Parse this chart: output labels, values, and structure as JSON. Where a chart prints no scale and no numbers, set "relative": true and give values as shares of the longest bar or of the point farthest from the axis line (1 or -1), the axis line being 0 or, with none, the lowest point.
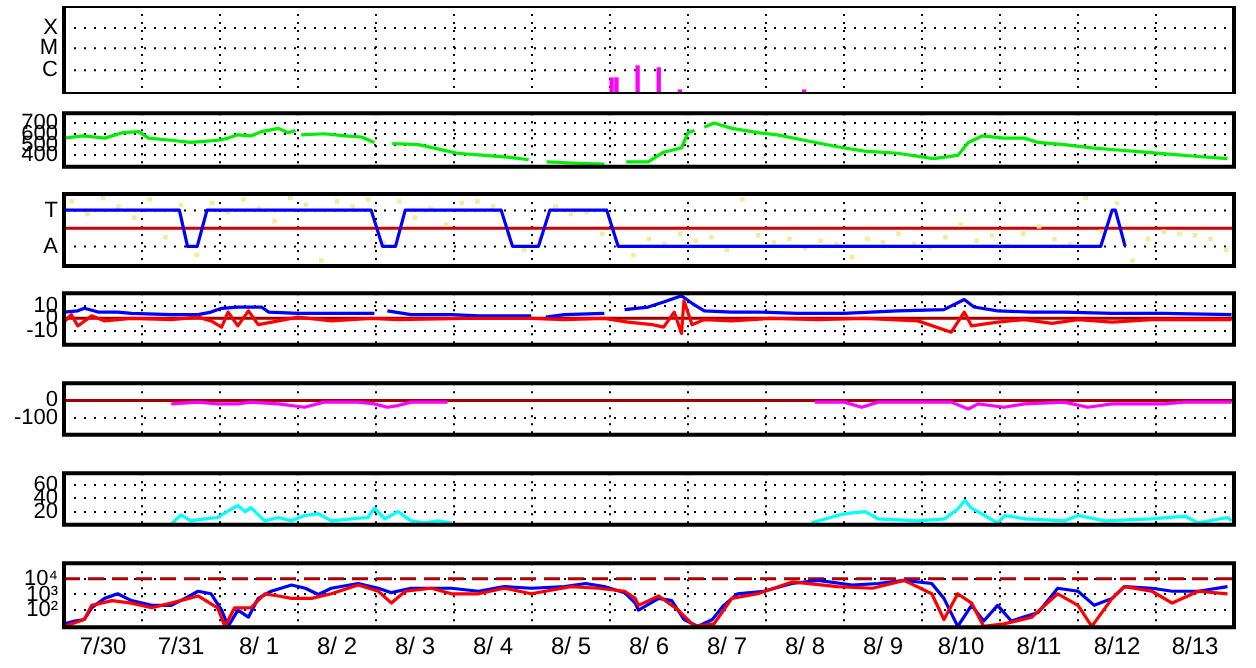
{
  "chart_data": [
    {
      "type": "bar",
      "relative": true,
      "x": [
        "--08-06T00:30",
        "--08-06T02:00",
        "--08-06T08:30",
        "--08-06T15:00",
        "--08-06T21:30",
        "--08-08T11:45"
      ],
      "values": [
        0.57,
        0.57,
        1,
        0.93,
        0.14,
        0.14
      ],
      "color": "#ff00ff",
      "annotations": [
        "C",
        "M",
        "X"
      ],
      "xlim": [
        "--07-30",
        "--08-14"
      ],
      "xticks": [
        {
          "value": "--07-30",
          "label": null
        },
        {
          "value": "--07-31",
          "label": null
        },
        {
          "value": "--08-01",
          "label": null
        },
        {
          "value": "--08-02",
          "label": null
        },
        {
          "value": "--08-03",
          "label": null
        },
        {
          "value": "--08-04",
          "label": null
        },
        {
          "value": "--08-05",
          "label": null
        },
        {
          "value": "--08-06",
          "label": null
        },
        {
          "value": "--08-07",
          "label": null
        },
        {
          "value": "--08-08",
          "label": null
        },
        {
          "value": "--08-09",
          "label": null
        },
        {
          "value": "--08-10",
          "label": null
        },
        {
          "value": "--08-11",
          "label": null
        },
        {
          "value": "--08-12",
          "label": null
        },
        {
          "value": "--08-13",
          "label": null
        },
        {
          "value": "--08-14",
          "label": null
        }
      ],
      "grid": true,
      "tick_labels": "y"
    },
    {
      "type": "line",
      "color": "#00ee00",
      "x": [
        "--07-30T00:00",
        "--07-30T06:00",
        "--07-30T12:30",
        "--07-30T18:00",
        "--07-30T23:00",
        "--07-31T02:00",
        "--07-31T09:00",
        "--07-31T15:00",
        "--07-31T19:00",
        "--07-31T23:30",
        "--08-01T02:30",
        "--08-01T05:30",
        "--08-01T09:30",
        "--08-01T12:45",
        "--08-01T18:00",
        "--08-01T21:00",
        "--08-01T23:15",
        "--08-02T00:00",
        "--08-02T01:00",
        "--08-02T08:00",
        "--08-02T14:30",
        "--08-02T19:30",
        "--08-02T23:30",
        "--08-03T02:30",
        "--08-03T05:00",
        "--08-03T13:00",
        "--08-03T19:00",
        "--08-04T01:00",
        "--08-04T09:30",
        "--08-04T18:00",
        "--08-04T23:00",
        "--08-05T00:00",
        "--08-05T04:30",
        "--08-05T12:00",
        "--08-05T22:15",
        "--08-05T23:00",
        "--08-06T05:00",
        "--08-06T11:45",
        "--08-06T16:30",
        "--08-06T22:00",
        "--08-07T00:00",
        "--08-07T02:00",
        "--08-07T03:00",
        "--08-07T05:00",
        "--08-07T08:00",
        "--08-07T13:30",
        "--08-07T21:30",
        "--08-08T03:30",
        "--08-08T11:45",
        "--08-08T22:00",
        "--08-09T06:15",
        "--08-09T16:30",
        "--08-10T03:30",
        "--08-10T11:00",
        "--08-10T14:15",
        "--08-10T18:30",
        "--08-11T01:15",
        "--08-11T07:30",
        "--08-11T11:45",
        "--08-11T19:45",
        "--08-12T04:15",
        "--08-12T12:15",
        "--08-12T20:30",
        "--08-13T05:00",
        "--08-13T13:00",
        "--08-13T22:00"
      ],
      "values": [
        560,
        580,
        560,
        610,
        620,
        560,
        540,
        520,
        530,
        540,
        560,
        590,
        580,
        620,
        650,
        610,
        630,
        null,
        590,
        600,
        580,
        570,
        520,
        null,
        510,
        500,
        460,
        420,
        400,
        380,
        360,
        null,
        340,
        330,
        320,
        null,
        340,
        340,
        430,
        470,
        610,
        630,
        null,
        660,
        700,
        650,
        610,
        590,
        540,
        480,
        440,
        420,
        370,
        400,
        520,
        580,
        560,
        560,
        520,
        500,
        470,
        450,
        430,
        410,
        390,
        370
      ],
      "xlim": [
        "--07-30",
        "--08-14"
      ],
      "xticks": [
        {
          "value": "--07-30",
          "label": null
        },
        {
          "value": "--07-31",
          "label": null
        },
        {
          "value": "--08-01",
          "label": null
        },
        {
          "value": "--08-02",
          "label": null
        },
        {
          "value": "--08-03",
          "label": null
        },
        {
          "value": "--08-04",
          "label": null
        },
        {
          "value": "--08-05",
          "label": null
        },
        {
          "value": "--08-06",
          "label": null
        },
        {
          "value": "--08-07",
          "label": null
        },
        {
          "value": "--08-08",
          "label": null
        },
        {
          "value": "--08-09",
          "label": null
        },
        {
          "value": "--08-10",
          "label": null
        },
        {
          "value": "--08-11",
          "label": null
        },
        {
          "value": "--08-12",
          "label": null
        },
        {
          "value": "--08-13",
          "label": null
        },
        {
          "value": "--08-14",
          "label": null
        }
      ],
      "ylim": [
        295,
        790
      ],
      "yticks": [
        400,
        500,
        600,
        700
      ],
      "grid": true,
      "tick_labels": "y"
    },
    {
      "type": "line",
      "relative": true,
      "series": [
        {
          "type": "scatter",
          "marker": "square",
          "color": "#f8e898",
          "x": [
            "--07-30T02:24",
            "--07-30T07:12",
            "--07-30T12:00",
            "--07-30T16:48",
            "--07-30T21:36",
            "--07-31T02:24",
            "--07-31T07:12",
            "--07-31T12:00",
            "--07-31T16:48",
            "--07-31T21:36",
            "--08-01T02:24",
            "--08-01T07:12",
            "--08-01T12:00",
            "--08-01T16:48",
            "--08-01T21:36",
            "--08-02T02:24",
            "--08-02T07:12",
            "--08-02T12:00",
            "--08-02T16:48",
            "--08-02T21:36",
            "--08-03T02:24",
            "--08-03T07:12",
            "--08-03T12:00",
            "--08-03T16:48",
            "--08-03T21:36",
            "--08-04T02:24",
            "--08-04T07:12",
            "--08-04T12:00",
            "--08-04T16:48",
            "--08-04T21:36",
            "--08-05T02:24",
            "--08-05T07:12",
            "--08-05T12:00",
            "--08-05T16:48",
            "--08-05T21:36",
            "--08-06T02:24",
            "--08-06T07:12",
            "--08-06T12:00",
            "--08-06T16:48",
            "--08-06T21:36",
            "--08-07T02:24",
            "--08-07T07:12",
            "--08-07T12:00",
            "--08-07T16:48",
            "--08-07T21:36",
            "--08-08T02:24",
            "--08-08T07:12",
            "--08-08T12:00",
            "--08-08T16:48",
            "--08-08T21:36",
            "--08-09T02:24",
            "--08-09T07:12",
            "--08-09T12:00",
            "--08-09T16:48",
            "--08-09T21:36",
            "--08-10T02:24",
            "--08-10T07:12",
            "--08-10T12:00",
            "--08-10T16:48",
            "--08-10T21:36",
            "--08-11T02:24",
            "--08-11T07:12",
            "--08-11T12:00",
            "--08-11T16:48",
            "--08-11T21:36",
            "--08-12T02:24",
            "--08-12T07:12",
            "--08-12T12:00",
            "--08-12T16:48",
            "--08-12T21:36",
            "--08-13T02:24",
            "--08-13T07:12",
            "--08-13T12:00",
            "--08-13T16:48",
            "--08-13T21:36"
          ],
          "values": [
            0.83,
            0.44,
            0.94,
            0.67,
            0.33,
            0.89,
            -0.28,
            0.72,
            -0.83,
            0.78,
            0.5,
            0.89,
            0.61,
            0.22,
            0.94,
            0.72,
            -1,
            0.83,
            0.67,
            0.89,
            -0.44,
            0.83,
            0.33,
            0.61,
            0.11,
            0.78,
            0.83,
            0.67,
            -0.22,
            -0.67,
            -0.33,
            0.67,
            0.44,
            0.5,
            -0.17,
            -0.5,
            -0.83,
            -0.33,
            -0.5,
            -0.17,
            -0.39,
            -0.28,
            -0.67,
            0.89,
            -0.22,
            -0.44,
            -0.33,
            -0.61,
            -0.39,
            -0.5,
            -0.89,
            -0.33,
            -0.44,
            -0.17,
            -0.5,
            -0.61,
            -0.28,
            0.11,
            -0.39,
            -0.22,
            -0.56,
            -0.17,
            0.06,
            -0.33,
            -0.5,
            0.94,
            -0.11,
            0.78,
            -1,
            -0.33,
            -0.11,
            -0.17,
            -0.22,
            -0.33,
            -0.67
          ]
        },
        {
          "color": "#0000ff",
          "x": [
            "--07-30T00:00",
            "--07-31T11:30",
            "--07-31T14:00",
            "--07-31T17:00",
            "--07-31T20:00",
            "--08-02T22:30",
            "--08-03T02:00",
            "--08-03T06:00",
            "--08-03T09:00",
            "--08-04T14:30",
            "--08-04T18:00",
            "--08-05T02:00",
            "--08-05T05:30",
            "--08-05T23:00",
            "--08-06T02:30",
            "--08-12T07:00",
            "--08-12T10:30",
            "--08-12T11:30",
            "--08-12T14:30"
          ],
          "values": [
            0.56,
            0.56,
            -0.56,
            -0.56,
            0.56,
            0.56,
            -0.56,
            -0.56,
            0.56,
            0.56,
            -0.56,
            -0.56,
            0.56,
            0.56,
            -0.56,
            -0.56,
            0.56,
            0.56,
            -0.56
          ]
        }
      ],
      "annotations": [
        "T",
        "A"
      ],
      "ref_lines": [
        {
          "axis": "y",
          "value": 0,
          "color": "#cc0000"
        }
      ],
      "xlim": [
        "--07-30",
        "--08-14"
      ],
      "xticks": [
        {
          "value": "--07-30",
          "label": null
        },
        {
          "value": "--07-31",
          "label": null
        },
        {
          "value": "--08-01",
          "label": null
        },
        {
          "value": "--08-02",
          "label": null
        },
        {
          "value": "--08-03",
          "label": null
        },
        {
          "value": "--08-04",
          "label": null
        },
        {
          "value": "--08-05",
          "label": null
        },
        {
          "value": "--08-06",
          "label": null
        },
        {
          "value": "--08-07",
          "label": null
        },
        {
          "value": "--08-08",
          "label": null
        },
        {
          "value": "--08-09",
          "label": null
        },
        {
          "value": "--08-10",
          "label": null
        },
        {
          "value": "--08-11",
          "label": null
        },
        {
          "value": "--08-12",
          "label": null
        },
        {
          "value": "--08-13",
          "label": null
        },
        {
          "value": "--08-14",
          "label": null
        }
      ],
      "grid": true,
      "tick_labels": "y"
    },
    {
      "type": "line",
      "series": [
        {
          "color": "#0000ff",
          "x": [
            "--07-30T00:00",
            "--07-30T04:15",
            "--07-30T06:15",
            "--07-30T10:30",
            "--07-30T16:30",
            "--07-30T20:45",
            "--07-31T09:00",
            "--07-31T17:15",
            "--07-31T21:15",
            "--08-01T00:30",
            "--08-01T05:30",
            "--08-01T12:45",
            "--08-01T15:00",
            "--08-02T00:00",
            "--08-02T10:15",
            "--08-02T23:30",
            "--08-03T01:15",
            "--08-03T03:30",
            "--08-03T10:45",
            "--08-03T23:15",
            "--08-04T07:30",
            "--08-04T23:45",
            "--08-05T01:15",
            "--08-05T04:15",
            "--08-05T10:00",
            "--08-05T22:15",
            "--08-06T00:00",
            "--08-06T04:30",
            "--08-06T11:45",
            "--08-06T16:30",
            "--08-06T22:00",
            "--08-07T01:15",
            "--08-07T05:00",
            "--08-07T13:30",
            "--08-07T21:30",
            "--08-08T09:45",
            "--08-09T00:00",
            "--08-09T16:30",
            "--08-10T06:45",
            "--08-10T13:00",
            "--08-10T16:00",
            "--08-10T23:15",
            "--08-11T09:45",
            "--08-11T19:45",
            "--08-12T10:30",
            "--08-13T02:30",
            "--08-13T23:15"
          ],
          "values": [
            5,
            6,
            8,
            5,
            5,
            4,
            3,
            3,
            5,
            8,
            9,
            9,
            5,
            4,
            4,
            4,
            null,
            6,
            3,
            3,
            2,
            2,
            null,
            1,
            3,
            4,
            null,
            7,
            9,
            13,
            18,
            12,
            6,
            5,
            5,
            4,
            4,
            6,
            7,
            15,
            9,
            6,
            5,
            5,
            4,
            4,
            3
          ]
        },
        {
          "color": "#ff0000",
          "x": [
            "--07-30T00:00",
            "--07-30T02:15",
            "--07-30T04:15",
            "--07-30T08:30",
            "--07-30T12:30",
            "--07-30T20:45",
            "--07-31T09:00",
            "--07-31T17:15",
            "--07-31T21:15",
            "--08-01T00:30",
            "--08-01T02:30",
            "--08-01T05:30",
            "--08-01T08:45",
            "--08-01T11:45",
            "--08-01T18:00",
            "--08-02T00:00",
            "--08-02T10:15",
            "--08-02T22:30",
            "--08-03T06:45",
            "--08-04T03:15",
            "--08-04T23:45",
            "--08-05T10:00",
            "--08-05T22:15",
            "--08-06T05:30",
            "--08-06T13:00",
            "--08-06T16:30",
            "--08-06T19:45",
            "--08-06T22:00",
            "--08-06T22:45",
            "--08-07T01:15",
            "--08-07T05:00",
            "--08-07T13:30",
            "--08-08T01:30",
            "--08-08T16:00",
            "--08-09T06:15",
            "--08-09T22:45",
            "--08-10T09:00",
            "--08-10T13:00",
            "--08-10T15:15",
            "--08-10T23:15",
            "--08-11T07:30",
            "--08-11T16:00",
            "--08-12T00:00",
            "--08-12T10:30",
            "--08-12T22:45",
            "--08-13T23:15"
          ],
          "values": [
            -3,
            3,
            -6,
            2,
            -2,
            0,
            -1,
            1,
            -2,
            -7,
            5,
            -6,
            6,
            -5,
            -2,
            1,
            -2,
            0,
            -1,
            0,
            0,
            -1,
            0,
            -3,
            -5,
            -7,
            5,
            -12,
            14,
            -5,
            -1,
            -2,
            0,
            -1,
            0,
            -2,
            -11,
            5,
            -6,
            -3,
            -1,
            -4,
            -1,
            -3,
            -1,
            -1
          ]
        }
      ],
      "ref_lines": [
        {
          "axis": "y",
          "value": 0,
          "color": "#a00000"
        }
      ],
      "xlim": [
        "--07-30",
        "--08-14"
      ],
      "xticks": [
        {
          "value": "--07-30",
          "label": null
        },
        {
          "value": "--07-31",
          "label": null
        },
        {
          "value": "--08-01",
          "label": null
        },
        {
          "value": "--08-02",
          "label": null
        },
        {
          "value": "--08-03",
          "label": null
        },
        {
          "value": "--08-04",
          "label": null
        },
        {
          "value": "--08-05",
          "label": null
        },
        {
          "value": "--08-06",
          "label": null
        },
        {
          "value": "--08-07",
          "label": null
        },
        {
          "value": "--08-08",
          "label": null
        },
        {
          "value": "--08-09",
          "label": null
        },
        {
          "value": "--08-10",
          "label": null
        },
        {
          "value": "--08-11",
          "label": null
        },
        {
          "value": "--08-12",
          "label": null
        },
        {
          "value": "--08-13",
          "label": null
        },
        {
          "value": "--08-14",
          "label": null
        }
      ],
      "ylim": [
        -21,
        20
      ],
      "yticks": [
        -10,
        0,
        10
      ],
      "grid": true,
      "tick_labels": "y"
    },
    {
      "type": "line",
      "color": "#ff00ff",
      "x": [
        "--07-31T09:00",
        "--07-31T17:15",
        "--07-31T23:15",
        "--08-01T05:30",
        "--08-01T09:30",
        "--08-01T18:00",
        "--08-02T02:00",
        "--08-02T08:00",
        "--08-02T18:30",
        "--08-02T23:30",
        "--08-03T03:30",
        "--08-03T06:45",
        "--08-03T10:45",
        "--08-03T22:00",
        "--08-04T00:00",
        "--08-08T15:00",
        "--08-09T00:00",
        "--08-09T05:30",
        "--08-09T10:30",
        "--08-10T09:00",
        "--08-10T14:15",
        "--08-10T17:15",
        "--08-11T01:15",
        "--08-11T07:30",
        "--08-11T19:45",
        "--08-12T03:00",
        "--08-12T10:30",
        "--08-13T02:30",
        "--08-13T08:45",
        "--08-13T23:15"
      ],
      "values": [
        -20,
        -10,
        -20,
        -20,
        -10,
        -20,
        -40,
        -10,
        -10,
        -20,
        -40,
        -30,
        -10,
        -10,
        null,
        -10,
        -10,
        -40,
        -10,
        -10,
        -50,
        -20,
        -40,
        -20,
        -10,
        -40,
        -20,
        -20,
        -10,
        -10
      ],
      "ref_lines": [
        {
          "axis": "y",
          "value": 0,
          "color": "#a00000"
        }
      ],
      "xlim": [
        "--07-30",
        "--08-14"
      ],
      "xticks": [
        {
          "value": "--07-30",
          "label": null
        },
        {
          "value": "--07-31",
          "label": null
        },
        {
          "value": "--08-01",
          "label": null
        },
        {
          "value": "--08-02",
          "label": null
        },
        {
          "value": "--08-03",
          "label": null
        },
        {
          "value": "--08-04",
          "label": null
        },
        {
          "value": "--08-05",
          "label": null
        },
        {
          "value": "--08-06",
          "label": null
        },
        {
          "value": "--08-07",
          "label": null
        },
        {
          "value": "--08-08",
          "label": null
        },
        {
          "value": "--08-09",
          "label": null
        },
        {
          "value": "--08-10",
          "label": null
        },
        {
          "value": "--08-11",
          "label": null
        },
        {
          "value": "--08-12",
          "label": null
        },
        {
          "value": "--08-13",
          "label": null
        },
        {
          "value": "--08-14",
          "label": null
        }
      ],
      "ylim": [
        -200,
        100
      ],
      "yticks": [
        -100,
        0
      ],
      "grid": true,
      "tick_labels": "y"
    },
    {
      "type": "line",
      "color": "#00ffff",
      "x": [
        "--07-31T09:00",
        "--07-31T12:00",
        "--07-31T15:00",
        "--07-31T19:15",
        "--07-31T23:15",
        "--08-01T03:30",
        "--08-01T05:30",
        "--08-01T07:45",
        "--08-01T09:30",
        "--08-01T13:45",
        "--08-01T18:00",
        "--08-01T22:00",
        "--08-02T02:00",
        "--08-02T06:15",
        "--08-02T10:15",
        "--08-02T16:15",
        "--08-02T21:30",
        "--08-02T23:30",
        "--08-03T02:45",
        "--08-03T06:45",
        "--08-03T10:45",
        "--08-03T15:00",
        "--08-03T19:00",
        "--08-03T23:15",
        "--08-04T00:00",
        "--08-08T14:00",
        "--08-09T00:15",
        "--08-09T06:30",
        "--08-09T10:30",
        "--08-09T22:45",
        "--08-10T07:00",
        "--08-10T11:00",
        "--08-10T13:15",
        "--08-10T15:00",
        "--08-10T23:15",
        "--08-11T01:30",
        "--08-11T07:45",
        "--08-11T20:00",
        "--08-12T00:00",
        "--08-12T08:15",
        "--08-12T22:30",
        "--08-13T09:00",
        "--08-13T13:00",
        "--08-13T22:00",
        "--08-13T23:15"
      ],
      "values": [
        1,
        15,
        6,
        9,
        11,
        24,
        29,
        20,
        26,
        6,
        11,
        6,
        14,
        17,
        6,
        9,
        11,
        25,
        9,
        20,
        6,
        3,
        6,
        3,
        null,
        3,
        17,
        20,
        9,
        6,
        9,
        24,
        37,
        26,
        3,
        14,
        9,
        6,
        14,
        6,
        9,
        13,
        3,
        11,
        6
      ],
      "xlim": [
        "--07-30",
        "--08-14"
      ],
      "xticks": [
        {
          "value": "--07-30",
          "label": null
        },
        {
          "value": "--07-31",
          "label": null
        },
        {
          "value": "--08-01",
          "label": null
        },
        {
          "value": "--08-02",
          "label": null
        },
        {
          "value": "--08-03",
          "label": null
        },
        {
          "value": "--08-04",
          "label": null
        },
        {
          "value": "--08-05",
          "label": null
        },
        {
          "value": "--08-06",
          "label": null
        },
        {
          "value": "--08-07",
          "label": null
        },
        {
          "value": "--08-08",
          "label": null
        },
        {
          "value": "--08-09",
          "label": null
        },
        {
          "value": "--08-10",
          "label": null
        },
        {
          "value": "--08-11",
          "label": null
        },
        {
          "value": "--08-12",
          "label": null
        },
        {
          "value": "--08-13",
          "label": null
        },
        {
          "value": "--08-14",
          "label": null
        }
      ],
      "ylim": [
        0,
        78
      ],
      "yticks": [
        20,
        40,
        60
      ],
      "grid": true,
      "tick_labels": "y"
    },
    {
      "type": "line",
      "log": "y",
      "series": [
        {
          "color": "#0000ff",
          "x": [
            "--07-30T00:00",
            "--07-30T03:15",
            "--07-30T06:15",
            "--07-30T08:30",
            "--07-30T12:30",
            "--07-30T16:30",
            "--07-30T20:45",
            "--07-31T03:00",
            "--07-31T09:00",
            "--07-31T13:15",
            "--07-31T17:15",
            "--07-31T21:15",
            "--08-01T00:30",
            "--08-01T02:30",
            "--08-01T05:30",
            "--08-01T08:45",
            "--08-01T11:45",
            "--08-01T15:45",
            "--08-01T22:00",
            "--08-02T02:15",
            "--08-02T06:15",
            "--08-02T10:15",
            "--08-02T18:30",
            "--08-03T00:45",
            "--08-03T04:45",
            "--08-03T10:45",
            "--08-03T17:00",
            "--08-03T23:15",
            "--08-04T07:30",
            "--08-04T15:30",
            "--08-04T23:45",
            "--08-05T10:00",
            "--08-05T16:30",
            "--08-05T22:15",
            "--08-06T04:30",
            "--08-06T07:45",
            "--08-06T08:45",
            "--08-06T15:00",
            "--08-06T19:00",
            "--08-06T22:45",
            "--08-07T03:00",
            "--08-07T07:30",
            "--08-07T11:00",
            "--08-07T15:15",
            "--08-07T23:15",
            "--08-08T08:00",
            "--08-08T16:00",
            "--08-09T02:30",
            "--08-09T10:30",
            "--08-09T18:30",
            "--08-10T03:00",
            "--08-10T06:45",
            "--08-10T11:00",
            "--08-10T15:15",
            "--08-10T19:00",
            "--08-10T23:15",
            "--08-11T03:30",
            "--08-11T11:45",
            "--08-11T17:45",
            "--08-12T00:00",
            "--08-12T05:00",
            "--08-12T10:30",
            "--08-12T14:15",
            "--08-12T22:45",
            "--08-13T05:00",
            "--08-13T13:00",
            "--08-13T22:00"
          ],
          "values": [
            13,
            20,
            25,
            140,
            560,
            1100,
            400,
            200,
            200,
            560,
            1600,
            1100,
            100,
            9,
            100,
            35,
            560,
            1600,
            4000,
            2500,
            1000,
            2500,
            5000,
            2500,
            1300,
            2500,
            2500,
            2500,
            1600,
            3200,
            2500,
            3200,
            5000,
            3200,
            1300,
            280,
            100,
            560,
            400,
            25,
            9,
            25,
            200,
            1100,
            1600,
            5000,
            8000,
            4000,
            5000,
            8000,
            5000,
            560,
            9,
            200,
            20,
            200,
            20,
            70,
            2500,
            1600,
            200,
            560,
            3200,
            2500,
            1600,
            1600,
            3200
          ]
        },
        {
          "color": "#ff0000",
          "x": [
            "--07-30T00:00",
            "--07-30T06:15",
            "--07-30T08:30",
            "--07-30T14:45",
            "--07-30T20:45",
            "--07-31T03:00",
            "--07-31T09:00",
            "--07-31T17:15",
            "--07-31T23:15",
            "--08-01T01:30",
            "--08-01T04:30",
            "--08-01T09:30",
            "--08-01T13:45",
            "--08-01T18:00",
            "--08-01T22:00",
            "--08-02T04:15",
            "--08-02T10:15",
            "--08-02T18:30",
            "--08-03T00:45",
            "--08-03T04:45",
            "--08-03T09:00",
            "--08-03T17:00",
            "--08-03T23:15",
            "--08-04T07:30",
            "--08-04T15:30",
            "--08-04T23:45",
            "--08-05T12:00",
            "--08-05T20:30",
            "--08-06T04:30",
            "--08-06T07:45",
            "--08-06T08:45",
            "--08-06T15:00",
            "--08-06T21:00",
            "--08-07T02:00",
            "--08-07T08:00",
            "--08-07T13:30",
            "--08-07T21:30",
            "--08-08T08:00",
            "--08-08T22:00",
            "--08-09T08:45",
            "--08-09T18:30",
            "--08-10T03:00",
            "--08-10T06:45",
            "--08-10T11:00",
            "--08-10T15:15",
            "--08-10T19:00",
            "--08-11T01:15",
            "--08-11T09:45",
            "--08-11T17:45",
            "--08-12T00:00",
            "--08-12T04:15",
            "--08-12T10:30",
            "--08-12T14:15",
            "--08-12T22:45",
            "--08-13T05:00",
            "--08-13T13:00",
            "--08-13T22:00"
          ],
          "values": [
            9,
            25,
            200,
            400,
            280,
            140,
            280,
            800,
            140,
            9,
            140,
            140,
            1100,
            800,
            560,
            560,
            1100,
            4000,
            1600,
            280,
            1600,
            2500,
            1100,
            1100,
            2500,
            1100,
            3200,
            2500,
            1600,
            560,
            200,
            800,
            100,
            9,
            13,
            560,
            1100,
            6300,
            3200,
            2500,
            8000,
            1100,
            25,
            1100,
            280,
            9,
            13,
            35,
            1100,
            200,
            9,
            560,
            3200,
            1600,
            280,
            1600,
            1100
          ]
        }
      ],
      "ref_lines": [
        {
          "axis": "y",
          "value": 10000,
          "color": "#b00000",
          "line_style": "dashed"
        }
      ],
      "xlim": [
        "--07-30",
        "--08-14"
      ],
      "xticks": [
        {
          "value": "--07-30",
          "label": null
        },
        {
          "value": "--07-30T12:00",
          "label": "7/30"
        },
        {
          "value": "--07-31",
          "label": null
        },
        {
          "value": "--07-31T12:00",
          "label": "7/31"
        },
        {
          "value": "--08-01",
          "label": null
        },
        {
          "value": "--08-01T12:00",
          "label": "8/ 1"
        },
        {
          "value": "--08-02",
          "label": null
        },
        {
          "value": "--08-02T12:00",
          "label": "8/ 2"
        },
        {
          "value": "--08-03",
          "label": null
        },
        {
          "value": "--08-03T12:00",
          "label": "8/ 3"
        },
        {
          "value": "--08-04",
          "label": null
        },
        {
          "value": "--08-04T12:00",
          "label": "8/ 4"
        },
        {
          "value": "--08-05",
          "label": null
        },
        {
          "value": "--08-05T12:00",
          "label": "8/ 5"
        },
        {
          "value": "--08-06",
          "label": null
        },
        {
          "value": "--08-06T12:00",
          "label": "8/ 6"
        },
        {
          "value": "--08-07",
          "label": null
        },
        {
          "value": "--08-07T12:00",
          "label": "8/ 7"
        },
        {
          "value": "--08-08",
          "label": null
        },
        {
          "value": "--08-08T12:00",
          "label": "8/ 8"
        },
        {
          "value": "--08-09",
          "label": null
        },
        {
          "value": "--08-09T12:00",
          "label": "8/ 9"
        },
        {
          "value": "--08-10",
          "label": null
        },
        {
          "value": "--08-10T12:00",
          "label": "8/10"
        },
        {
          "value": "--08-11",
          "label": null
        },
        {
          "value": "--08-11T12:00",
          "label": "8/11"
        },
        {
          "value": "--08-12",
          "label": null
        },
        {
          "value": "--08-12T12:00",
          "label": "8/12"
        },
        {
          "value": "--08-13",
          "label": null
        },
        {
          "value": "--08-13T12:00",
          "label": "8/13"
        },
        {
          "value": "--08-14",
          "label": null
        }
      ],
      "ylim": [
        8,
        100000
      ],
      "yticks": [
        {
          "value": 100,
          "label": "10²"
        },
        {
          "value": 1000,
          "label": "10³"
        },
        {
          "value": 10000,
          "label": "10⁴"
        }
      ],
      "grid": true
    }
  ]
}
